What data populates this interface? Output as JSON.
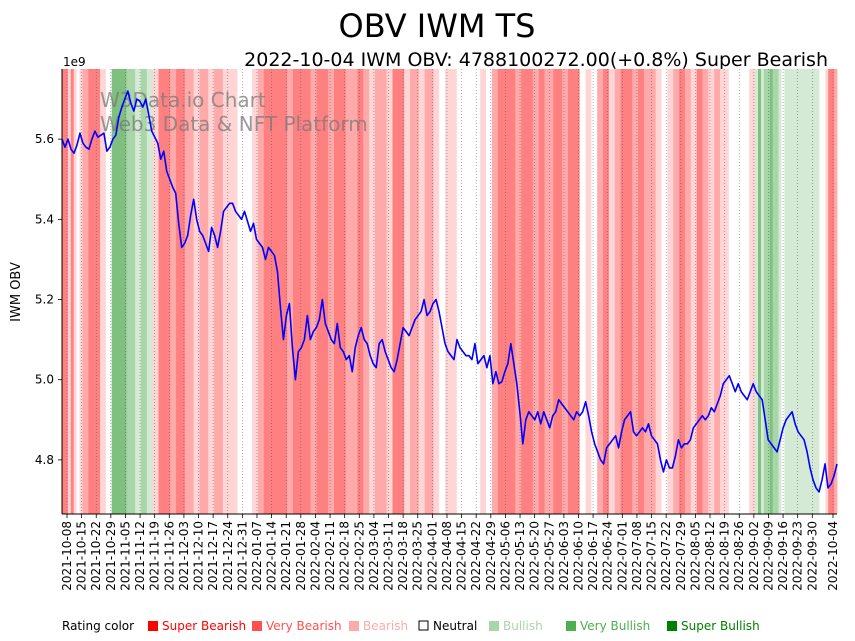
{
  "chart_data": {
    "type": "line",
    "title": "OBV IWM TS",
    "subtitle": "2022-10-04 IWM OBV: 4788100272.00(+0.8%) Super Bearish",
    "ylabel": "IWM OBV",
    "xlabel": "",
    "y_offset_label": "1e9",
    "ylim": [
      4.665,
      5.775
    ],
    "yticks": [
      4.8,
      5.0,
      5.2,
      5.4,
      5.6
    ],
    "ytick_labels": [
      "4.8",
      "5.0",
      "5.2",
      "5.4",
      "5.6"
    ],
    "xtick_labels": [
      "2021-10-08",
      "2021-10-15",
      "2021-10-22",
      "2021-10-29",
      "2021-11-05",
      "2021-11-12",
      "2021-11-19",
      "2021-11-26",
      "2021-12-03",
      "2021-12-10",
      "2021-12-17",
      "2021-12-24",
      "2021-12-31",
      "2022-01-07",
      "2022-01-14",
      "2022-01-21",
      "2022-01-28",
      "2022-02-04",
      "2022-02-11",
      "2022-02-18",
      "2022-02-25",
      "2022-03-04",
      "2022-03-11",
      "2022-03-18",
      "2022-03-25",
      "2022-04-01",
      "2022-04-08",
      "2022-04-15",
      "2022-04-22",
      "2022-04-29",
      "2022-05-06",
      "2022-05-13",
      "2022-05-20",
      "2022-05-27",
      "2022-06-03",
      "2022-06-10",
      "2022-06-17",
      "2022-06-24",
      "2022-07-01",
      "2022-07-08",
      "2022-07-15",
      "2022-07-22",
      "2022-07-29",
      "2022-08-05",
      "2022-08-12",
      "2022-08-19",
      "2022-08-26",
      "2022-09-02",
      "2022-09-09",
      "2022-09-16",
      "2022-09-23",
      "2022-09-30",
      "2022-10-04"
    ],
    "series": [
      {
        "name": "IWM OBV (1e9)",
        "color": "#0000ff",
        "values": [
          5.6,
          5.58,
          5.6,
          5.575,
          5.565,
          5.585,
          5.615,
          5.59,
          5.58,
          5.575,
          5.6,
          5.62,
          5.605,
          5.61,
          5.615,
          5.57,
          5.58,
          5.6,
          5.61,
          5.655,
          5.68,
          5.7,
          5.72,
          5.69,
          5.67,
          5.7,
          5.695,
          5.68,
          5.7,
          5.66,
          5.62,
          5.605,
          5.59,
          5.55,
          5.57,
          5.52,
          5.5,
          5.48,
          5.465,
          5.39,
          5.33,
          5.34,
          5.36,
          5.41,
          5.45,
          5.4,
          5.37,
          5.36,
          5.34,
          5.32,
          5.38,
          5.36,
          5.33,
          5.37,
          5.42,
          5.43,
          5.44,
          5.44,
          5.42,
          5.41,
          5.4,
          5.42,
          5.395,
          5.37,
          5.39,
          5.35,
          5.34,
          5.33,
          5.3,
          5.33,
          5.32,
          5.31,
          5.27,
          5.18,
          5.1,
          5.16,
          5.19,
          5.08,
          5.0,
          5.07,
          5.08,
          5.1,
          5.16,
          5.1,
          5.12,
          5.13,
          5.15,
          5.2,
          5.14,
          5.12,
          5.1,
          5.09,
          5.14,
          5.08,
          5.07,
          5.05,
          5.06,
          5.02,
          5.08,
          5.11,
          5.13,
          5.1,
          5.09,
          5.06,
          5.04,
          5.03,
          5.09,
          5.1,
          5.07,
          5.05,
          5.03,
          5.02,
          5.05,
          5.09,
          5.13,
          5.12,
          5.11,
          5.13,
          5.15,
          5.16,
          5.17,
          5.2,
          5.16,
          5.17,
          5.19,
          5.2,
          5.17,
          5.13,
          5.09,
          5.07,
          5.06,
          5.05,
          5.1,
          5.08,
          5.07,
          5.06,
          5.06,
          5.05,
          5.09,
          5.04,
          5.05,
          5.06,
          5.03,
          5.06,
          4.99,
          5.02,
          4.99,
          4.995,
          5.02,
          5.04,
          5.09,
          5.04,
          4.99,
          4.92,
          4.84,
          4.9,
          4.92,
          4.91,
          4.9,
          4.92,
          4.89,
          4.92,
          4.9,
          4.88,
          4.91,
          4.92,
          4.95,
          4.94,
          4.93,
          4.92,
          4.91,
          4.9,
          4.92,
          4.91,
          4.92,
          4.945,
          4.91,
          4.87,
          4.84,
          4.82,
          4.8,
          4.79,
          4.83,
          4.84,
          4.85,
          4.86,
          4.83,
          4.87,
          4.9,
          4.91,
          4.92,
          4.87,
          4.86,
          4.87,
          4.88,
          4.87,
          4.89,
          4.86,
          4.85,
          4.84,
          4.8,
          4.77,
          4.8,
          4.78,
          4.78,
          4.81,
          4.85,
          4.83,
          4.84,
          4.84,
          4.85,
          4.88,
          4.89,
          4.9,
          4.91,
          4.9,
          4.91,
          4.93,
          4.92,
          4.94,
          4.96,
          4.99,
          5.0,
          5.01,
          4.99,
          4.97,
          4.99,
          4.97,
          4.96,
          4.95,
          4.97,
          4.99,
          4.97,
          4.96,
          4.95,
          4.9,
          4.85,
          4.84,
          4.83,
          4.82,
          4.85,
          4.88,
          4.9,
          4.91,
          4.92,
          4.89,
          4.87,
          4.86,
          4.85,
          4.82,
          4.78,
          4.75,
          4.73,
          4.72,
          4.75,
          4.79,
          4.73,
          4.74,
          4.76,
          4.79
        ]
      }
    ],
    "rating_bands": [
      [
        "super_bearish",
        1.0
      ],
      [
        "bearish",
        0.5
      ],
      [
        "super_bearish",
        0.5
      ],
      [
        "bearish",
        0.5
      ],
      [
        "neutral",
        0.5
      ],
      [
        "bearish",
        0.5
      ],
      [
        "very_bearish",
        1.0
      ],
      [
        "super_bearish",
        2.0
      ],
      [
        "bearish",
        1.0
      ],
      [
        "neutral",
        1.0
      ],
      [
        "super_bullish",
        2.5
      ],
      [
        "very_bullish",
        1.5
      ],
      [
        "bullish",
        1.0
      ],
      [
        "very_bullish",
        1.0
      ],
      [
        "bullish",
        1.0
      ],
      [
        "bearish",
        1.0
      ],
      [
        "super_bearish",
        2.0
      ],
      [
        "very_bearish",
        1.0
      ],
      [
        "super_bearish",
        1.5
      ],
      [
        "very_bearish",
        1.5
      ],
      [
        "bearish",
        1.0
      ],
      [
        "very_bearish",
        1.5
      ],
      [
        "bearish",
        1.0
      ],
      [
        "very_bearish",
        1.5
      ],
      [
        "bearish",
        2.5
      ],
      [
        "neutral",
        2.5
      ],
      [
        "bearish",
        1.0
      ],
      [
        "very_bearish",
        1.0
      ],
      [
        "super_bearish",
        4.0
      ],
      [
        "very_bearish",
        1.0
      ],
      [
        "super_bearish",
        3.0
      ],
      [
        "very_bearish",
        1.0
      ],
      [
        "super_bearish",
        2.0
      ],
      [
        "very_bearish",
        1.0
      ],
      [
        "super_bearish",
        2.0
      ],
      [
        "very_bearish",
        2.0
      ],
      [
        "super_bearish",
        1.0
      ],
      [
        "very_bearish",
        1.0
      ],
      [
        "bearish",
        1.0
      ],
      [
        "very_bearish",
        2.0
      ],
      [
        "bearish",
        1.0
      ],
      [
        "super_bearish",
        2.0
      ],
      [
        "bearish",
        1.0
      ],
      [
        "very_bearish",
        1.5
      ],
      [
        "bearish",
        1.0
      ],
      [
        "very_bearish",
        1.5
      ],
      [
        "bearish",
        1.0
      ],
      [
        "neutral",
        1.0
      ],
      [
        "bearish",
        2.0
      ],
      [
        "neutral",
        4.0
      ],
      [
        "bearish",
        1.0
      ],
      [
        "neutral",
        1.0
      ],
      [
        "very_bearish",
        1.0
      ],
      [
        "super_bearish",
        3.0
      ],
      [
        "very_bearish",
        1.0
      ],
      [
        "super_bearish",
        2.0
      ],
      [
        "very_bearish",
        1.0
      ],
      [
        "super_bearish",
        1.0
      ],
      [
        "very_bearish",
        1.5
      ],
      [
        "super_bearish",
        1.5
      ],
      [
        "very_bearish",
        1.0
      ],
      [
        "super_bearish",
        2.0
      ],
      [
        "neutral",
        1.0
      ],
      [
        "bearish",
        1.0
      ],
      [
        "neutral",
        1.0
      ],
      [
        "very_bearish",
        1.0
      ],
      [
        "super_bearish",
        1.0
      ],
      [
        "bearish",
        1.0
      ],
      [
        "very_bearish",
        1.0
      ],
      [
        "super_bearish",
        2.0
      ],
      [
        "very_bearish",
        1.0
      ],
      [
        "super_bearish",
        1.0
      ],
      [
        "very_bearish",
        2.0
      ],
      [
        "bearish",
        1.0
      ],
      [
        "neutral",
        1.0
      ],
      [
        "bearish",
        1.0
      ],
      [
        "very_bearish",
        1.0
      ],
      [
        "super_bearish",
        1.0
      ],
      [
        "very_bearish",
        1.0
      ],
      [
        "bearish",
        1.0
      ],
      [
        "super_bearish",
        1.0
      ],
      [
        "very_bearish",
        1.0
      ],
      [
        "bearish",
        1.0
      ],
      [
        "very_bearish",
        1.0
      ],
      [
        "bearish",
        1.5
      ],
      [
        "neutral",
        3.5
      ],
      [
        "bearish",
        1.0
      ],
      [
        "bullish",
        0.5
      ],
      [
        "super_bullish",
        0.5
      ],
      [
        "bullish",
        0.5
      ],
      [
        "very_bullish",
        1.0
      ],
      [
        "super_bullish",
        0.5
      ],
      [
        "very_bullish",
        1.0
      ],
      [
        "bullish",
        0.5
      ],
      [
        "neutral",
        0.5
      ],
      [
        "bullish",
        6.0
      ],
      [
        "neutral",
        1.0
      ],
      [
        "bearish",
        0.5
      ],
      [
        "super_bearish",
        1.0
      ],
      [
        "very_bearish",
        0.5
      ]
    ],
    "legend": {
      "title": "Rating color",
      "items": [
        {
          "key": "super_bearish",
          "label": "Super Bearish",
          "color": "#ff0000",
          "band_color": "#ff8080"
        },
        {
          "key": "very_bearish",
          "label": "Very Bearish",
          "color": "#ff5050",
          "band_color": "#ffaaaa"
        },
        {
          "key": "bearish",
          "label": "Bearish",
          "color": "#ffaaaa",
          "band_color": "#ffd5d5"
        },
        {
          "key": "neutral",
          "label": "Neutral",
          "color": "#000000",
          "band_color": "#ffffff"
        },
        {
          "key": "bullish",
          "label": "Bullish",
          "color": "#aad4aa",
          "band_color": "#d4ead4"
        },
        {
          "key": "very_bullish",
          "label": "Very Bullish",
          "color": "#4caf50",
          "band_color": "#a8d6a8"
        },
        {
          "key": "super_bullish",
          "label": "Super Bullish",
          "color": "#008000",
          "band_color": "#7fbf7f"
        }
      ]
    },
    "watermark": [
      "W3Data.io Chart",
      "Web3 Data & NFT Platform"
    ]
  }
}
